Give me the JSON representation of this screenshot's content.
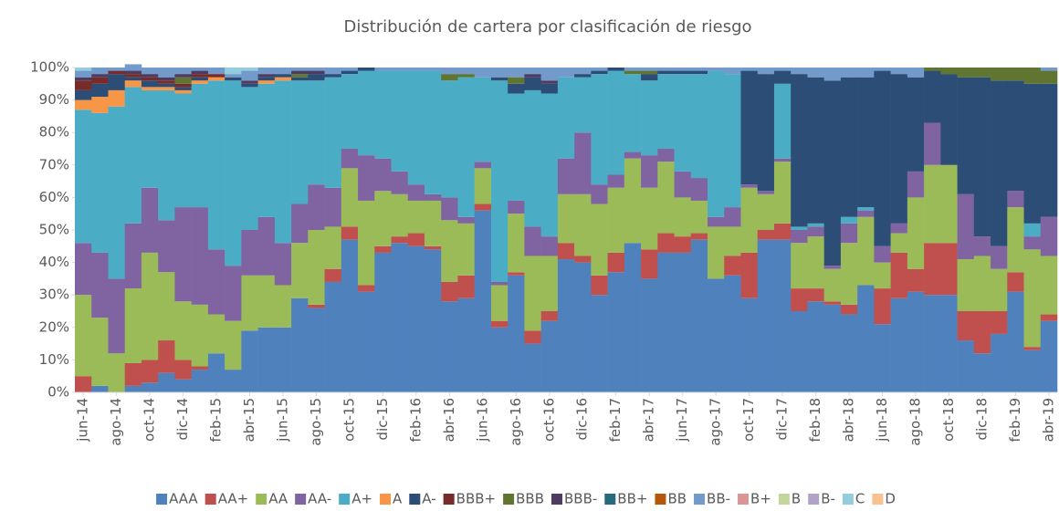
{
  "chart_data": {
    "type": "stacked_bar_100",
    "title": "Distribución de cartera por clasificación de riesgo",
    "categories": [
      "jun-14",
      null,
      "ago-14",
      null,
      "oct-14",
      null,
      "dic-14",
      null,
      "feb-15",
      null,
      "abr-15",
      null,
      "jun-15",
      null,
      "ago-15",
      null,
      "oct-15",
      null,
      "dic-15",
      null,
      "feb-16",
      null,
      "abr-16",
      null,
      "jun-16",
      null,
      "ago-16",
      null,
      "oct-16",
      null,
      "dic-16",
      null,
      "feb-17",
      null,
      "abr-17",
      null,
      "jun-17",
      null,
      "ago-17",
      null,
      "oct-17",
      null,
      "dic-17",
      null,
      "feb-18",
      null,
      "abr-18",
      null,
      "jun-18",
      null,
      "ago-18",
      null,
      "oct-18",
      null,
      "dic-18",
      null,
      "feb-19",
      null,
      "abr-19"
    ],
    "ylim": [
      0,
      100
    ],
    "yticks": [
      {
        "value": 0,
        "label": "0%"
      },
      {
        "value": 10,
        "label": "10%"
      },
      {
        "value": 20,
        "label": "20%"
      },
      {
        "value": 30,
        "label": "30%"
      },
      {
        "value": 40,
        "label": "40%"
      },
      {
        "value": 50,
        "label": "50%"
      },
      {
        "value": 60,
        "label": "60%"
      },
      {
        "value": 70,
        "label": "70%"
      },
      {
        "value": 80,
        "label": "80%"
      },
      {
        "value": 90,
        "label": "90%"
      },
      {
        "value": 100,
        "label": "100%"
      }
    ],
    "legend": "bottom",
    "series": [
      {
        "name": "AAA",
        "color": "#4f81bd",
        "values": [
          0,
          2,
          0,
          2,
          3,
          6,
          4,
          7,
          12,
          7,
          19,
          20,
          20,
          29,
          26,
          34,
          47,
          31,
          43,
          46,
          45,
          44,
          28,
          29,
          56,
          20,
          36,
          15,
          22,
          41,
          40,
          30,
          37,
          46,
          35,
          43,
          43,
          47,
          35,
          36,
          29,
          47,
          47,
          25,
          28,
          27,
          24,
          33,
          21,
          29,
          31,
          30,
          30,
          16,
          12,
          18,
          31,
          13,
          22
        ]
      },
      {
        "name": "AA+",
        "color": "#c0504d",
        "values": [
          5,
          0,
          0,
          7,
          7,
          10,
          6,
          1,
          0,
          0,
          0,
          0,
          0,
          0,
          1,
          4,
          4,
          2,
          2,
          2,
          4,
          1,
          6,
          7,
          2,
          2,
          1,
          4,
          3,
          5,
          2,
          6,
          6,
          0,
          9,
          6,
          5,
          2,
          0,
          6,
          14,
          3,
          5,
          7,
          4,
          1,
          3,
          0,
          11,
          14,
          7,
          16,
          16,
          9,
          13,
          7,
          6,
          1,
          2
        ]
      },
      {
        "name": "AA",
        "color": "#9bbb59",
        "values": [
          25,
          21,
          12,
          23,
          33,
          21,
          18,
          19,
          12,
          15,
          17,
          16,
          13,
          17,
          23,
          13,
          18,
          26,
          17,
          13,
          10,
          14,
          19,
          16,
          11,
          11,
          18,
          23,
          17,
          15,
          19,
          22,
          20,
          26,
          19,
          22,
          12,
          10,
          16,
          9,
          20,
          11,
          19,
          14,
          16,
          10,
          19,
          21,
          8,
          6,
          22,
          24,
          24,
          16,
          17,
          13,
          20,
          30,
          18
        ]
      },
      {
        "name": "AA-",
        "color": "#8064a2",
        "values": [
          16,
          20,
          23,
          20,
          20,
          16,
          29,
          30,
          20,
          17,
          14,
          18,
          13,
          12,
          14,
          12,
          6,
          14,
          10,
          7,
          5,
          2,
          7,
          2,
          2,
          1,
          4,
          9,
          6,
          11,
          19,
          6,
          4,
          2,
          10,
          4,
          8,
          7,
          3,
          6,
          1,
          1,
          1,
          4,
          3,
          1,
          6,
          2,
          5,
          3,
          8,
          13,
          0,
          20,
          6,
          7,
          5,
          4,
          12
        ]
      },
      {
        "name": "A+",
        "color": "#4bacc6",
        "values": [
          41,
          43,
          53,
          42,
          30,
          40,
          35,
          38,
          52,
          57,
          44,
          41,
          50,
          38,
          32,
          34,
          23,
          26,
          27,
          31,
          35,
          38,
          36,
          43,
          26,
          62,
          33,
          42,
          44,
          25,
          17,
          34,
          32,
          24,
          23,
          23,
          30,
          32,
          45,
          41,
          0,
          0,
          23,
          1,
          1,
          0,
          2,
          1,
          0,
          0,
          0,
          0,
          0,
          0,
          0,
          0,
          0,
          4,
          0
        ]
      },
      {
        "name": "A",
        "color": "#f79646",
        "values": [
          3,
          5,
          5,
          2,
          1,
          1,
          1,
          1,
          1,
          0,
          0,
          1,
          1,
          0,
          0,
          0,
          0,
          0,
          0,
          0,
          0,
          0,
          0,
          0,
          0,
          0,
          0,
          0,
          0,
          0,
          0,
          0,
          0,
          0,
          0,
          0,
          0,
          0,
          0,
          0,
          0,
          0,
          0,
          0,
          0,
          0,
          0,
          0,
          0,
          0,
          0,
          0,
          0,
          0,
          0,
          0,
          0,
          0,
          0
        ]
      },
      {
        "name": "A-",
        "color": "#2c4d75",
        "values": [
          3,
          4,
          5,
          1,
          2,
          1,
          1,
          1,
          0,
          1,
          1,
          1,
          1,
          1,
          2,
          1,
          1,
          1,
          0,
          0,
          0,
          0,
          0,
          0,
          0,
          1,
          3,
          4,
          3,
          0,
          1,
          1,
          1,
          0,
          2,
          1,
          1,
          1,
          0,
          0,
          35,
          36,
          4,
          47,
          45,
          57,
          43,
          40,
          54,
          46,
          29,
          16,
          28,
          36,
          49,
          51,
          34,
          43,
          41
        ]
      },
      {
        "name": "BBB+",
        "color": "#772c2a",
        "values": [
          3,
          2,
          1,
          1,
          1,
          1,
          1,
          1,
          1,
          0,
          0,
          0,
          0,
          0,
          0,
          0,
          0,
          0,
          0,
          0,
          0,
          0,
          0,
          0,
          0,
          0,
          0,
          0,
          0,
          0,
          0,
          0,
          0,
          0,
          0,
          0,
          0,
          0,
          0,
          0,
          0,
          0,
          0,
          0,
          0,
          0,
          0,
          0,
          0,
          0,
          0,
          0,
          0,
          0,
          0,
          0,
          0,
          0,
          0
        ]
      },
      {
        "name": "BBB",
        "color": "#5f7530",
        "values": [
          0,
          0,
          0,
          0,
          0,
          0,
          2,
          0,
          0,
          0,
          0,
          0,
          0,
          1,
          0,
          0,
          0,
          0,
          0,
          0,
          0,
          0,
          2,
          1,
          0,
          0,
          2,
          0,
          0,
          0,
          0,
          0,
          0,
          1,
          1,
          0,
          0,
          0,
          0,
          0,
          0,
          0,
          0,
          0,
          0,
          0,
          0,
          0,
          0,
          0,
          0,
          1,
          2,
          3,
          3,
          4,
          4,
          5,
          4
        ]
      },
      {
        "name": "BBB-",
        "color": "#4d3b62",
        "values": [
          1,
          1,
          0,
          1,
          1,
          1,
          1,
          1,
          0,
          0,
          1,
          1,
          0,
          1,
          1,
          0,
          0,
          0,
          0,
          0,
          0,
          0,
          0,
          0,
          0,
          0,
          0,
          1,
          1,
          0,
          0,
          0,
          0,
          0,
          0,
          0,
          0,
          0,
          0,
          0,
          0,
          0,
          0,
          0,
          0,
          0,
          0,
          0,
          0,
          0,
          0,
          0,
          0,
          0,
          0,
          0,
          0,
          0,
          0
        ]
      },
      {
        "name": "BB+",
        "color": "#276a7c",
        "values": [
          0,
          0,
          0,
          0,
          0,
          0,
          0,
          0,
          0,
          0,
          0,
          0,
          0,
          0,
          0,
          0,
          0,
          0,
          0,
          0,
          0,
          0,
          0,
          0,
          0,
          0,
          0,
          0,
          0,
          0,
          0,
          0,
          0,
          0,
          0,
          0,
          0,
          0,
          0,
          0,
          0,
          0,
          0,
          0,
          0,
          0,
          0,
          0,
          0,
          0,
          0,
          0,
          0,
          0,
          0,
          0,
          0,
          0,
          0
        ]
      },
      {
        "name": "BB",
        "color": "#b65708",
        "values": [
          0,
          0,
          0,
          0,
          0,
          0,
          0,
          0,
          0,
          0,
          0,
          0,
          0,
          0,
          0,
          0,
          0,
          0,
          0,
          0,
          0,
          0,
          0,
          0,
          0,
          0,
          0,
          0,
          0,
          0,
          0,
          0,
          0,
          0,
          0,
          0,
          0,
          0,
          0,
          0,
          0,
          0,
          0,
          0,
          0,
          0,
          0,
          0,
          0,
          0,
          0,
          0,
          0,
          0,
          0,
          0,
          0,
          0,
          0
        ]
      },
      {
        "name": "BB-",
        "color": "#729aca",
        "values": [
          2,
          2,
          1,
          2,
          2,
          3,
          2,
          1,
          2,
          1,
          3,
          2,
          2,
          1,
          1,
          2,
          1,
          0,
          1,
          1,
          1,
          1,
          2,
          2,
          3,
          3,
          3,
          2,
          4,
          3,
          2,
          1,
          0,
          1,
          1,
          1,
          1,
          1,
          1,
          2,
          1,
          2,
          1,
          2,
          3,
          4,
          3,
          3,
          1,
          2,
          3,
          0,
          0,
          0,
          0,
          0,
          0,
          0,
          1
        ]
      },
      {
        "name": "B+",
        "color": "#d99694",
        "values": [
          0,
          0,
          0,
          0,
          0,
          0,
          0,
          0,
          0,
          0,
          0,
          0,
          0,
          0,
          0,
          0,
          0,
          0,
          0,
          0,
          0,
          0,
          0,
          0,
          0,
          0,
          0,
          0,
          0,
          0,
          0,
          0,
          0,
          0,
          0,
          0,
          0,
          0,
          0,
          0,
          0,
          0,
          0,
          0,
          0,
          0,
          0,
          0,
          0,
          0,
          0,
          0,
          0,
          0,
          0,
          0,
          0,
          0,
          0
        ]
      },
      {
        "name": "B",
        "color": "#c3d69b",
        "values": [
          0,
          0,
          0,
          0,
          0,
          0,
          0,
          0,
          0,
          0,
          0,
          0,
          0,
          0,
          0,
          0,
          0,
          0,
          0,
          0,
          0,
          0,
          0,
          0,
          0,
          0,
          0,
          0,
          0,
          0,
          0,
          0,
          0,
          0,
          0,
          0,
          0,
          0,
          0,
          0,
          0,
          0,
          0,
          0,
          0,
          0,
          0,
          0,
          0,
          0,
          0,
          0,
          0,
          0,
          0,
          0,
          0,
          0,
          0
        ]
      },
      {
        "name": "B-",
        "color": "#b3a2c7",
        "values": [
          0,
          0,
          0,
          0,
          0,
          0,
          0,
          0,
          0,
          0,
          0,
          0,
          0,
          0,
          0,
          0,
          0,
          0,
          0,
          0,
          0,
          0,
          0,
          0,
          0,
          0,
          0,
          0,
          0,
          0,
          0,
          0,
          0,
          0,
          0,
          0,
          0,
          0,
          0,
          0,
          0,
          0,
          0,
          0,
          0,
          0,
          0,
          0,
          0,
          0,
          0,
          0,
          0,
          0,
          0,
          0,
          0,
          0,
          0
        ]
      },
      {
        "name": "C",
        "color": "#93cddd",
        "values": [
          1,
          0,
          0,
          0,
          0,
          0,
          0,
          0,
          0,
          2,
          1,
          0,
          0,
          0,
          0,
          0,
          0,
          0,
          0,
          0,
          0,
          0,
          0,
          0,
          0,
          0,
          0,
          0,
          0,
          0,
          0,
          0,
          0,
          0,
          0,
          0,
          0,
          0,
          0,
          0,
          0,
          0,
          0,
          0,
          0,
          0,
          0,
          0,
          0,
          0,
          0,
          0,
          0,
          0,
          0,
          0,
          0,
          0,
          0
        ]
      },
      {
        "name": "D",
        "color": "#fac090",
        "values": [
          0,
          0,
          0,
          0,
          0,
          0,
          0,
          0,
          0,
          0,
          0,
          0,
          0,
          0,
          0,
          0,
          0,
          0,
          0,
          0,
          0,
          0,
          0,
          0,
          0,
          0,
          0,
          0,
          0,
          0,
          0,
          0,
          0,
          0,
          0,
          0,
          0,
          0,
          0,
          0,
          0,
          0,
          0,
          0,
          0,
          0,
          0,
          0,
          0,
          0,
          0,
          0,
          0,
          0,
          0,
          0,
          0,
          0,
          0
        ]
      }
    ]
  }
}
